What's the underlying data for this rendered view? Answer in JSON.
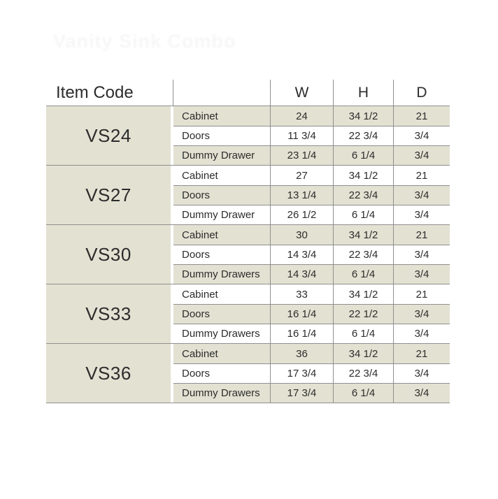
{
  "ghost_title": "Vanity Sink Combo",
  "table": {
    "colors": {
      "shaded_row": "#e3e1d2",
      "grid_line": "#8f8f8f",
      "text": "#2c2c2c"
    },
    "header": {
      "item_code": "Item Code",
      "part": "",
      "w": "W",
      "h": "H",
      "d": "D"
    },
    "groups": [
      {
        "code": "VS24",
        "rows": [
          {
            "label": "Cabinet",
            "w": "24",
            "h": "34 1/2",
            "d": "21"
          },
          {
            "label": "Doors",
            "w": "11 3/4",
            "h": "22 3/4",
            "d": "3/4"
          },
          {
            "label": "Dummy Drawer",
            "w": "23 1/4",
            "h": "6 1/4",
            "d": "3/4"
          }
        ]
      },
      {
        "code": "VS27",
        "rows": [
          {
            "label": "Cabinet",
            "w": "27",
            "h": "34 1/2",
            "d": "21"
          },
          {
            "label": "Doors",
            "w": "13 1/4",
            "h": "22 3/4",
            "d": "3/4"
          },
          {
            "label": "Dummy Drawer",
            "w": "26 1/2",
            "h": "6 1/4",
            "d": "3/4"
          }
        ]
      },
      {
        "code": "VS30",
        "rows": [
          {
            "label": "Cabinet",
            "w": "30",
            "h": "34 1/2",
            "d": "21"
          },
          {
            "label": "Doors",
            "w": "14 3/4",
            "h": "22 3/4",
            "d": "3/4"
          },
          {
            "label": "Dummy Drawers",
            "w": "14 3/4",
            "h": "6 1/4",
            "d": "3/4"
          }
        ]
      },
      {
        "code": "VS33",
        "rows": [
          {
            "label": "Cabinet",
            "w": "33",
            "h": "34 1/2",
            "d": "21"
          },
          {
            "label": "Doors",
            "w": "16 1/4",
            "h": "22 1/2",
            "d": "3/4"
          },
          {
            "label": "Dummy Drawers",
            "w": "16 1/4",
            "h": "6 1/4",
            "d": "3/4"
          }
        ]
      },
      {
        "code": "VS36",
        "rows": [
          {
            "label": "Cabinet",
            "w": "36",
            "h": "34 1/2",
            "d": "21"
          },
          {
            "label": "Doors",
            "w": "17 3/4",
            "h": "22 3/4",
            "d": "3/4"
          },
          {
            "label": "Dummy Drawers",
            "w": "17 3/4",
            "h": "6 1/4",
            "d": "3/4"
          }
        ]
      }
    ]
  }
}
